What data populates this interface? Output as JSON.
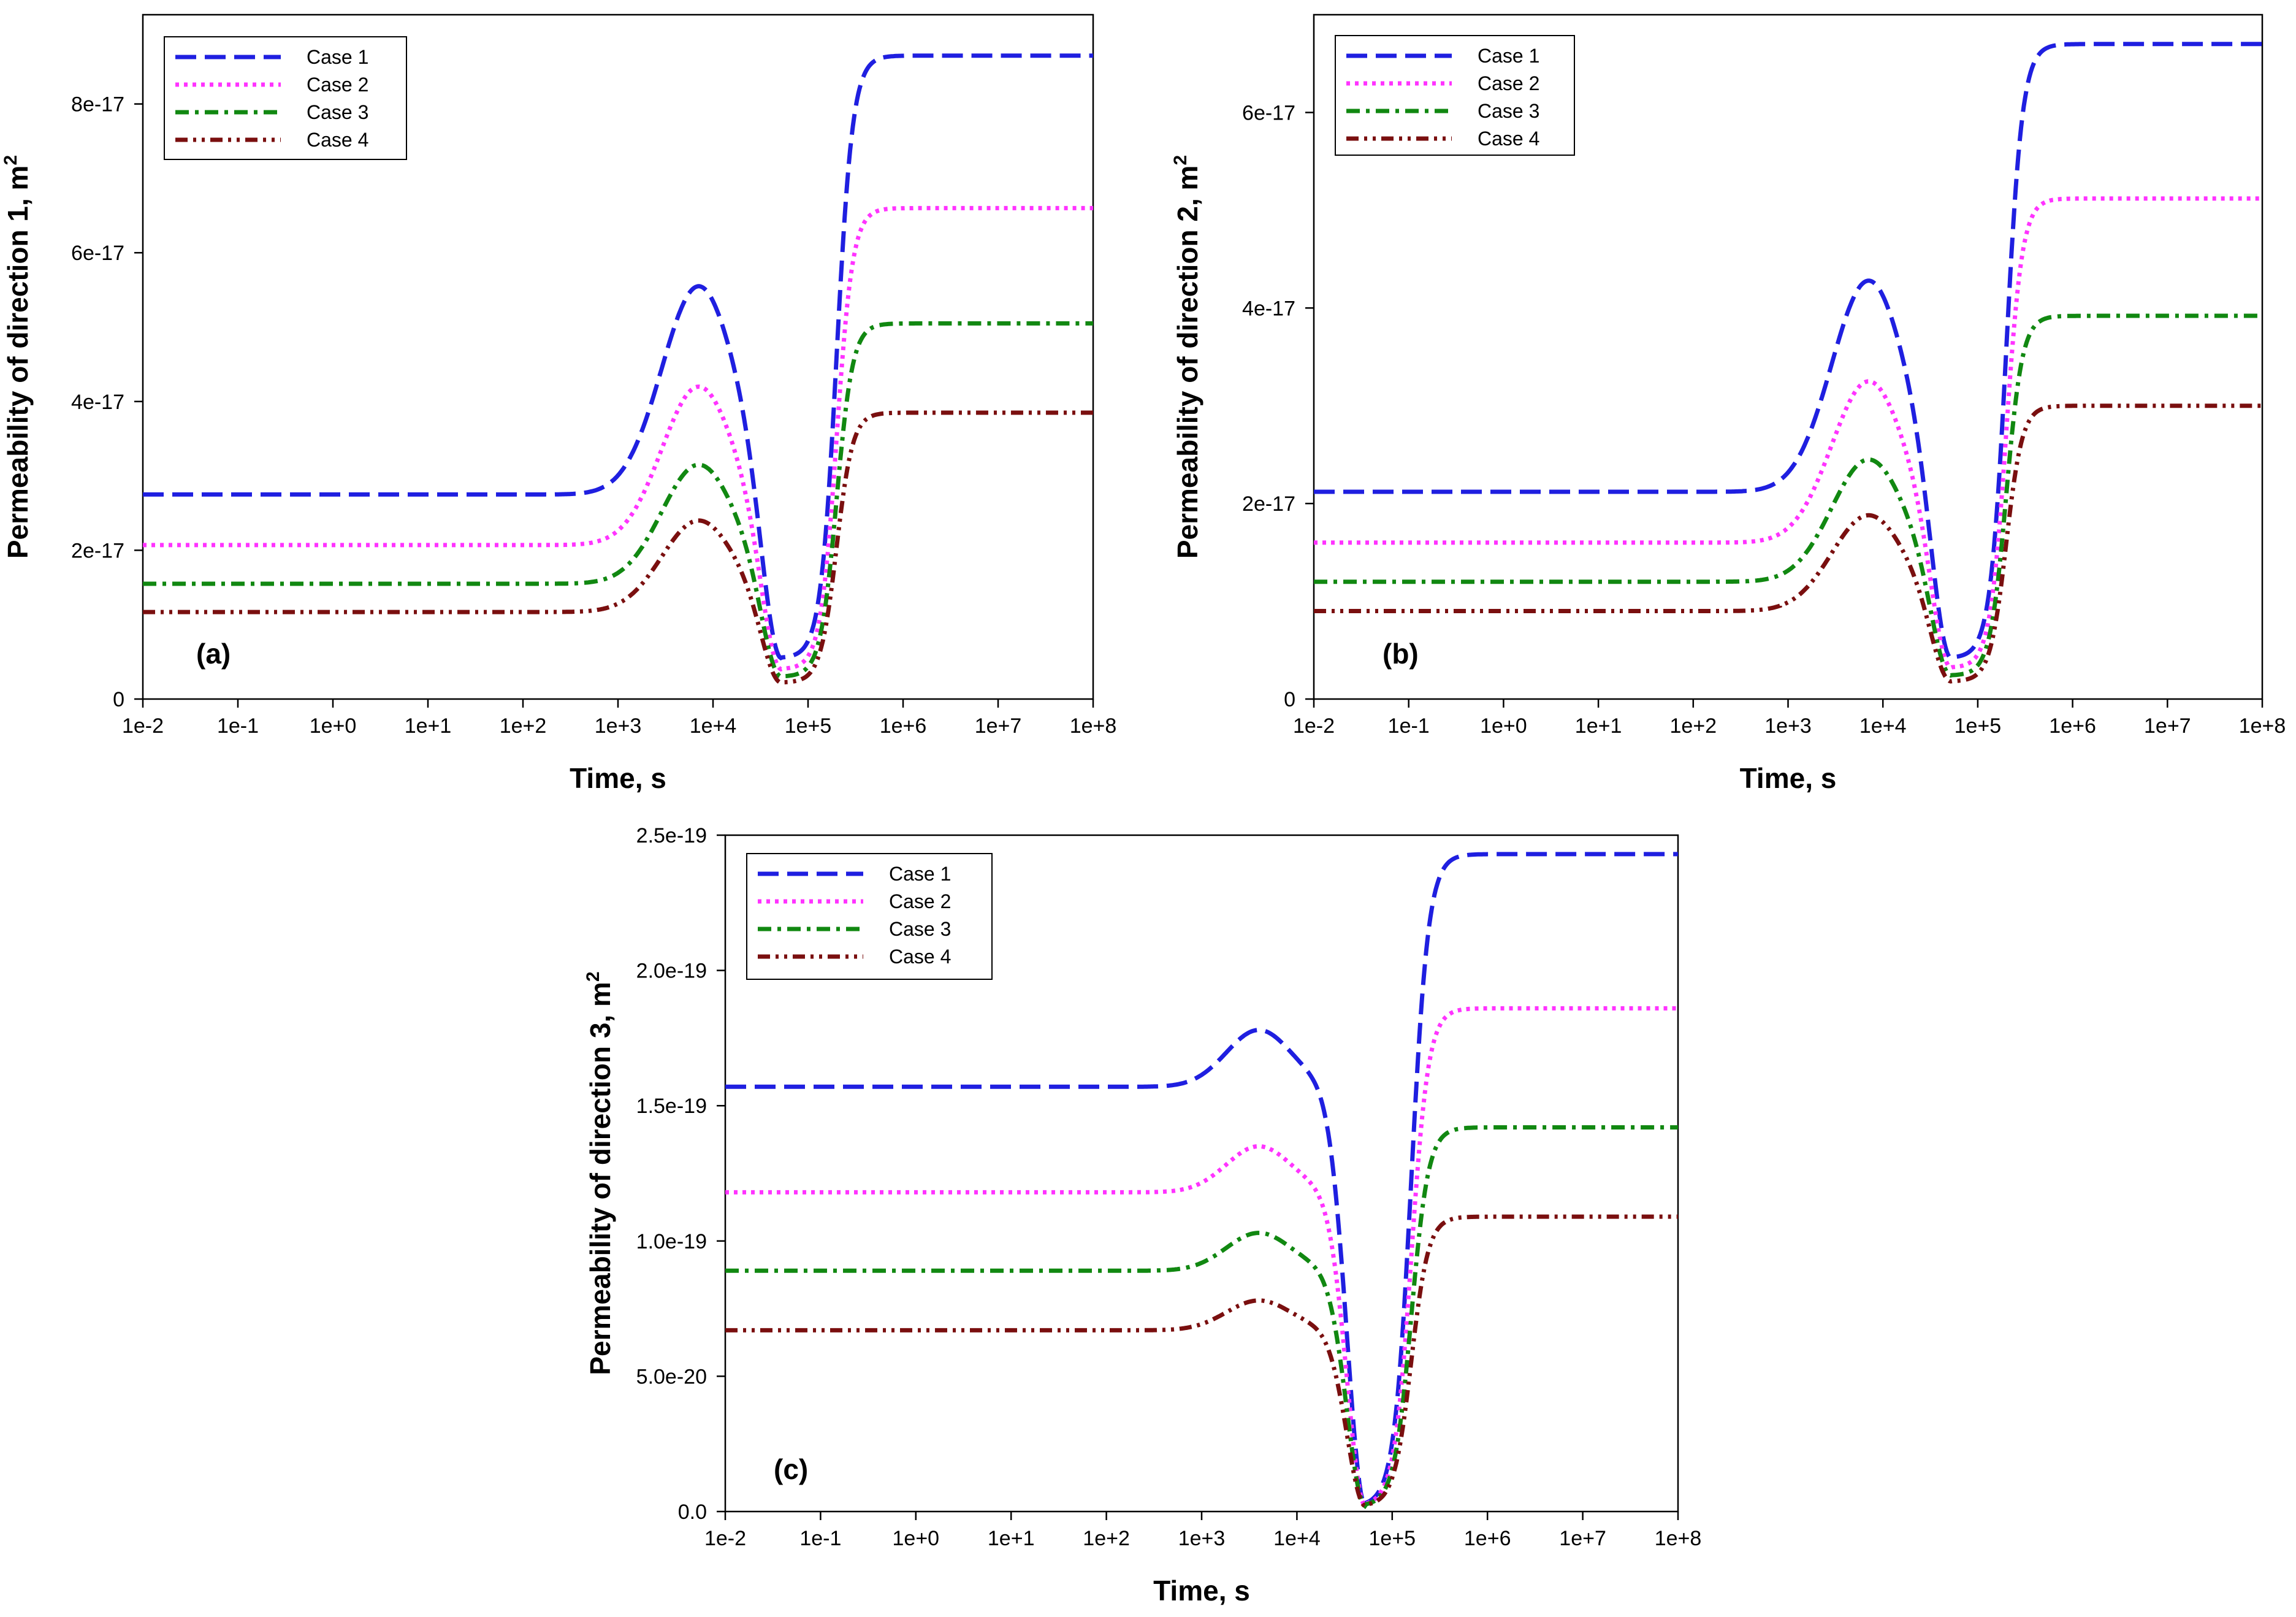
{
  "chart_data": [
    {
      "type": "line",
      "panel_label": "(a)",
      "xlabel": "Time, s",
      "ylabel": "Permeability of direction 1, m",
      "ylabel_sup": "2",
      "x_scale": "log10",
      "xlim": [
        0.01,
        100000000
      ],
      "ylim": [
        0,
        9.2e-17
      ],
      "x_tick_labels": [
        "1e-2",
        "1e-1",
        "1e+0",
        "1e+1",
        "1e+2",
        "1e+3",
        "1e+4",
        "1e+5",
        "1e+6",
        "1e+7",
        "1e+8"
      ],
      "y_ticks": [
        0,
        2e-17,
        4e-17,
        6e-17,
        8e-17
      ],
      "y_tick_labels": [
        "0",
        "2e-17",
        "4e-17",
        "6e-17",
        "8e-17"
      ],
      "legend_position": "top-left",
      "series": [
        {
          "name": "Case 1",
          "color": "#1f1fe0",
          "dash": "dashed",
          "base": 2.75e-17,
          "peak": 5.55e-17,
          "min": 5.5e-18,
          "final": 8.65e-17
        },
        {
          "name": "Case 2",
          "color": "#ff33ff",
          "dash": "dotted",
          "base": 2.07e-17,
          "peak": 4.2e-17,
          "min": 4e-18,
          "final": 6.6e-17
        },
        {
          "name": "Case 3",
          "color": "#118811",
          "dash": "dashdot",
          "base": 1.55e-17,
          "peak": 3.15e-17,
          "min": 3e-18,
          "final": 5.05e-17
        },
        {
          "name": "Case 4",
          "color": "#7a0f0f",
          "dash": "dashdotdot",
          "base": 1.17e-17,
          "peak": 2.4e-17,
          "min": 2.2e-18,
          "final": 3.85e-17
        }
      ]
    },
    {
      "type": "line",
      "panel_label": "(b)",
      "xlabel": "Time, s",
      "ylabel": "Permeability of direction 2, m",
      "ylabel_sup": "2",
      "x_scale": "log10",
      "xlim": [
        0.01,
        100000000
      ],
      "ylim": [
        0,
        7e-17
      ],
      "x_tick_labels": [
        "1e-2",
        "1e-1",
        "1e+0",
        "1e+1",
        "1e+2",
        "1e+3",
        "1e+4",
        "1e+5",
        "1e+6",
        "1e+7",
        "1e+8"
      ],
      "y_ticks": [
        0,
        2e-17,
        4e-17,
        6e-17
      ],
      "y_tick_labels": [
        "0",
        "2e-17",
        "4e-17",
        "6e-17"
      ],
      "legend_position": "top-left",
      "series": [
        {
          "name": "Case 1",
          "color": "#1f1fe0",
          "dash": "dashed",
          "base": 2.12e-17,
          "peak": 4.28e-17,
          "min": 4.2e-18,
          "final": 6.7e-17
        },
        {
          "name": "Case 2",
          "color": "#ff33ff",
          "dash": "dotted",
          "base": 1.6e-17,
          "peak": 3.25e-17,
          "min": 3.2e-18,
          "final": 5.12e-17
        },
        {
          "name": "Case 3",
          "color": "#118811",
          "dash": "dashdot",
          "base": 1.2e-17,
          "peak": 2.45e-17,
          "min": 2.4e-18,
          "final": 3.92e-17
        },
        {
          "name": "Case 4",
          "color": "#7a0f0f",
          "dash": "dashdotdot",
          "base": 9e-18,
          "peak": 1.88e-17,
          "min": 1.8e-18,
          "final": 3e-17
        }
      ]
    },
    {
      "type": "line",
      "panel_label": "(c)",
      "xlabel": "Time, s",
      "ylabel": "Permeability of direction 3, m",
      "ylabel_sup": "2",
      "x_scale": "log10",
      "xlim": [
        0.01,
        100000000
      ],
      "ylim": [
        0,
        2.5e-19
      ],
      "x_tick_labels": [
        "1e-2",
        "1e-1",
        "1e+0",
        "1e+1",
        "1e+2",
        "1e+3",
        "1e+4",
        "1e+5",
        "1e+6",
        "1e+7",
        "1e+8"
      ],
      "y_ticks": [
        0,
        5e-20,
        1e-19,
        1.5e-19,
        2e-19,
        2.5e-19
      ],
      "y_tick_labels": [
        "0.0",
        "5.0e-20",
        "1.0e-19",
        "1.5e-19",
        "2.0e-19",
        "2.5e-19"
      ],
      "legend_position": "top-left",
      "series": [
        {
          "name": "Case 1",
          "color": "#1f1fe0",
          "dash": "dashed",
          "base": 1.57e-19,
          "peak": 1.78e-19,
          "min": 2e-21,
          "final": 2.43e-19
        },
        {
          "name": "Case 2",
          "color": "#ff33ff",
          "dash": "dotted",
          "base": 1.18e-19,
          "peak": 1.35e-19,
          "min": 2e-21,
          "final": 1.86e-19
        },
        {
          "name": "Case 3",
          "color": "#118811",
          "dash": "dashdot",
          "base": 8.9e-20,
          "peak": 1.03e-19,
          "min": 2e-21,
          "final": 1.42e-19
        },
        {
          "name": "Case 4",
          "color": "#7a0f0f",
          "dash": "dashdotdot",
          "base": 6.7e-20,
          "peak": 7.8e-20,
          "min": 2e-21,
          "final": 1.09e-19
        }
      ]
    }
  ]
}
